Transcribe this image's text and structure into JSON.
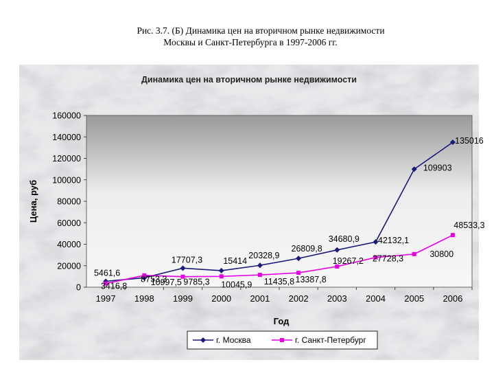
{
  "caption": {
    "line1": "Рис. 3.7. (Б) Динамика цен на вторичном рынке недвижимости",
    "line2": "Москвы и Санкт-Петербурга в 1997-2006 гг."
  },
  "chart_data": {
    "type": "line",
    "title": "Динамика цен на вторичном рынке недвижимости",
    "xlabel": "Год",
    "ylabel": "Цена, руб",
    "categories": [
      "1997",
      "1998",
      "1999",
      "2000",
      "2001",
      "2002",
      "2003",
      "2004",
      "2005",
      "2006"
    ],
    "ylim": [
      0,
      160000
    ],
    "yticks": [
      "0",
      "20000",
      "40000",
      "60000",
      "80000",
      "100000",
      "120000",
      "140000",
      "160000"
    ],
    "grid": false,
    "legend_position": "bottom",
    "series": [
      {
        "name": "г. Москва",
        "color": "#1a1a7a",
        "marker": "diamond",
        "values": [
          5461.6,
          8753.3,
          17707.3,
          15414,
          20328.9,
          26809.8,
          34680.9,
          42132.1,
          109903,
          135016
        ],
        "labels": [
          "5461,6",
          "8753,3",
          "17707,3",
          "15414",
          "20328,9",
          "26809,8",
          "34680,9",
          "42132,1",
          "109903",
          "135016"
        ]
      },
      {
        "name": "г. Санкт-Петербург",
        "color": "#e600e6",
        "marker": "square",
        "values": [
          3416.8,
          10997.5,
          9785.3,
          10045.9,
          11435.8,
          13387.8,
          19267.2,
          27728.3,
          30800,
          48533.3
        ],
        "labels": [
          "3416,8",
          "10997,5",
          "9785,3",
          "10045,9",
          "11435,8",
          "13387,8",
          "19267,2",
          "27728,3",
          "30800",
          "48533,3"
        ]
      }
    ]
  }
}
